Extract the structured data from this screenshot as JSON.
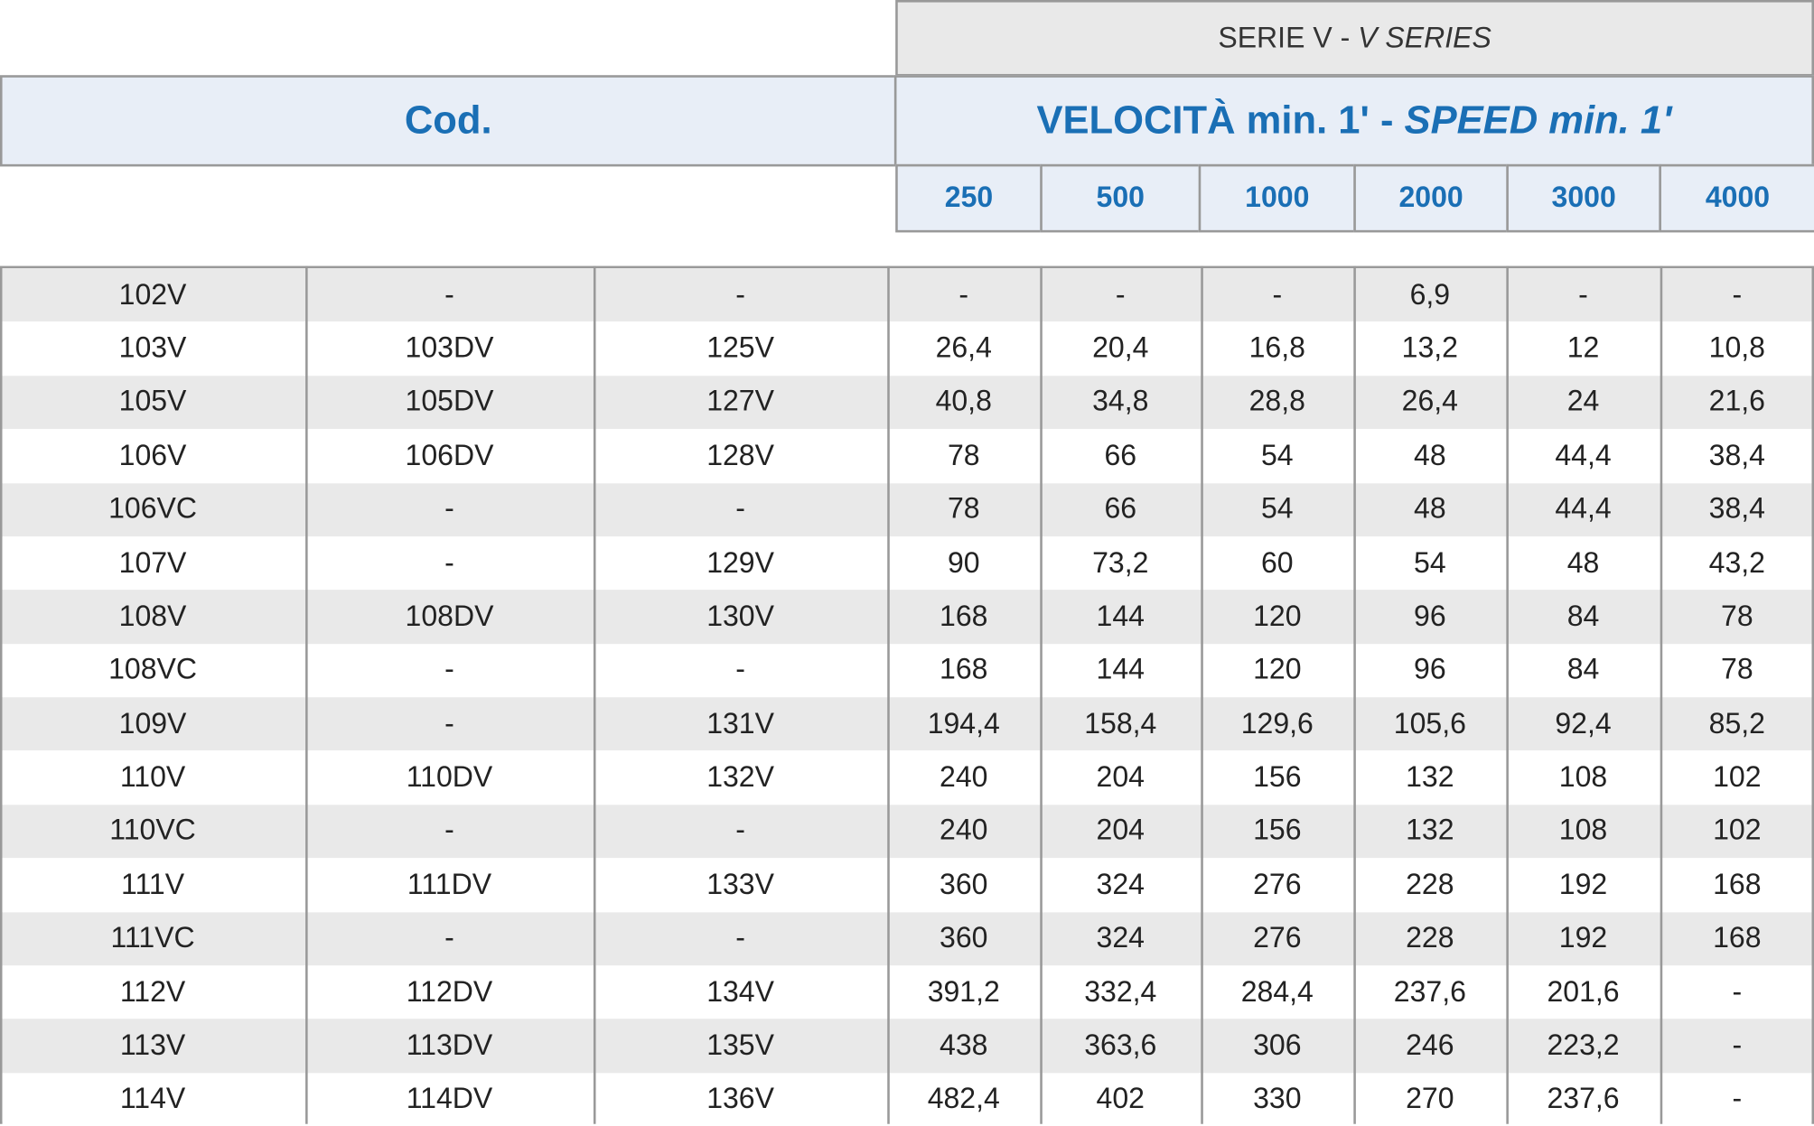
{
  "header": {
    "series": {
      "it": "SERIE V -",
      "en": "V SERIES"
    },
    "code_label": "Cod.",
    "speed": {
      "it": "VELOCITÀ min. 1' -",
      "en": "SPEED min. 1'"
    },
    "speeds": [
      "250",
      "500",
      "1000",
      "2000",
      "3000",
      "4000"
    ]
  },
  "table": {
    "rows": [
      [
        "102V",
        "-",
        "-",
        "-",
        "-",
        "-",
        "6,9",
        "-",
        "-"
      ],
      [
        "103V",
        "103DV",
        "125V",
        "26,4",
        "20,4",
        "16,8",
        "13,2",
        "12",
        "10,8"
      ],
      [
        "105V",
        "105DV",
        "127V",
        "40,8",
        "34,8",
        "28,8",
        "26,4",
        "24",
        "21,6"
      ],
      [
        "106V",
        "106DV",
        "128V",
        "78",
        "66",
        "54",
        "48",
        "44,4",
        "38,4"
      ],
      [
        "106VC",
        "-",
        "-",
        "78",
        "66",
        "54",
        "48",
        "44,4",
        "38,4"
      ],
      [
        "107V",
        "-",
        "129V",
        "90",
        "73,2",
        "60",
        "54",
        "48",
        "43,2"
      ],
      [
        "108V",
        "108DV",
        "130V",
        "168",
        "144",
        "120",
        "96",
        "84",
        "78"
      ],
      [
        "108VC",
        "-",
        "-",
        "168",
        "144",
        "120",
        "96",
        "84",
        "78"
      ],
      [
        "109V",
        "-",
        "131V",
        "194,4",
        "158,4",
        "129,6",
        "105,6",
        "92,4",
        "85,2"
      ],
      [
        "110V",
        "110DV",
        "132V",
        "240",
        "204",
        "156",
        "132",
        "108",
        "102"
      ],
      [
        "110VC",
        "-",
        "-",
        "240",
        "204",
        "156",
        "132",
        "108",
        "102"
      ],
      [
        "111V",
        "111DV",
        "133V",
        "360",
        "324",
        "276",
        "228",
        "192",
        "168"
      ],
      [
        "111VC",
        "-",
        "-",
        "360",
        "324",
        "276",
        "228",
        "192",
        "168"
      ],
      [
        "112V",
        "112DV",
        "134V",
        "391,2",
        "332,4",
        "284,4",
        "237,6",
        "201,6",
        "-"
      ],
      [
        "113V",
        "113DV",
        "135V",
        "438",
        "363,6",
        "306",
        "246",
        "223,2",
        "-"
      ],
      [
        "114V",
        "114DV",
        "136V",
        "482,4",
        "402",
        "330",
        "270",
        "237,6",
        "-"
      ]
    ]
  }
}
